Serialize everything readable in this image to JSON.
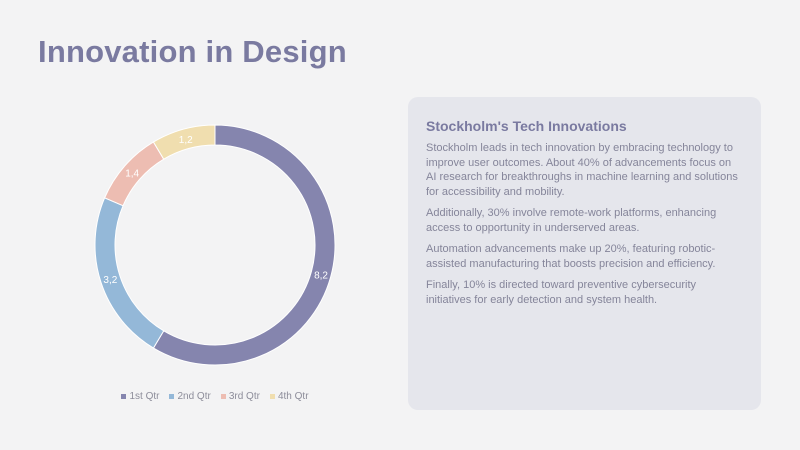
{
  "slide": {
    "title": "Innovation in Design"
  },
  "chart_data": {
    "type": "pie",
    "style": "donut",
    "categories": [
      "1st Qtr",
      "2nd Qtr",
      "3rd Qtr",
      "4th Qtr"
    ],
    "values": [
      8.2,
      3.2,
      1.4,
      1.2
    ],
    "labels": [
      "8,2",
      "3,2",
      "1,4",
      "1,2"
    ],
    "colors": [
      "#8585ae",
      "#94b8d8",
      "#edbdb2",
      "#f0deaf"
    ],
    "legend_position": "bottom"
  },
  "card": {
    "heading": "Stockholm's Tech Innovations",
    "paragraphs": [
      "Stockholm leads in tech innovation by embracing technology to improve user outcomes. About 40% of advancements focus on AI research for breakthroughs in machine learning and solutions for accessibility and mobility.",
      "Additionally, 30% involve remote-work platforms, enhancing access to opportunity in underserved areas.",
      "Automation advancements make up 20%, featuring robotic-assisted manufacturing that boosts precision and efficiency.",
      "Finally, 10% is directed toward preventive cybersecurity initiatives for early detection and system health."
    ]
  }
}
